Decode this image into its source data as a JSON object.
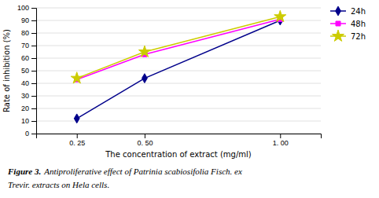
{
  "chart_data": {
    "type": "line",
    "x": [
      0.25,
      0.5,
      1.0
    ],
    "series": [
      {
        "name": "24h",
        "color": "#00008B",
        "marker": "diamond",
        "values": [
          12,
          44,
          90
        ]
      },
      {
        "name": "48h",
        "color": "#FF00FF",
        "marker": "square",
        "values": [
          43,
          63,
          91
        ]
      },
      {
        "name": "72h",
        "color": "#CCCC00",
        "marker": "star",
        "values": [
          44,
          65,
          93
        ]
      }
    ],
    "x_label": "The concentration of extract (mg/ml)",
    "y_label": "Rate of inhibition (%)",
    "xlim": [
      0.1,
      1.15
    ],
    "ylim": [
      0,
      100
    ],
    "xticks": [
      {
        "value": 0.25,
        "label": "0. 25"
      },
      {
        "value": 0.5,
        "label": "0. 50"
      },
      {
        "value": 1.0,
        "label": "1. 00"
      }
    ],
    "yticks": [
      0,
      10,
      20,
      30,
      40,
      50,
      60,
      70,
      80,
      90,
      100
    ],
    "grid": true,
    "legend": "right",
    "annotations": [
      "Figure 3.",
      "Antiproliferative effect of Patrinia scabiosifolia Fisch. ex",
      "Trevir. extracts on Hela cells."
    ]
  }
}
